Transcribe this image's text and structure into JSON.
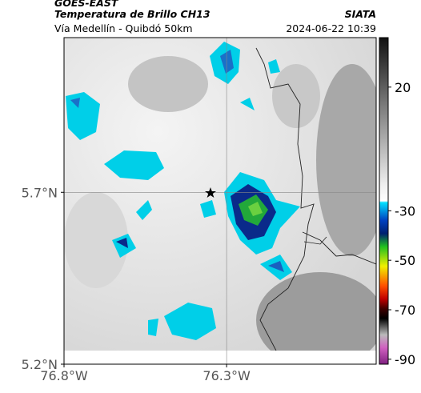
{
  "header": {
    "title": "GOES-EAST",
    "subtitle": "Temperatura de Brillo CH13",
    "source": "SIATA",
    "region": "Vía Medellín - Quibdó 50km",
    "timestamp": "2024-06-22 10:39"
  },
  "map": {
    "xlim": [
      -76.8,
      -75.84
    ],
    "ylim": [
      5.2,
      6.15
    ],
    "xticks": [
      {
        "value": -76.8,
        "label": "76.8°W"
      },
      {
        "value": -76.3,
        "label": "76.3°W"
      }
    ],
    "yticks": [
      {
        "value": 5.7,
        "label": "5.7°N"
      },
      {
        "value": 5.2,
        "label": "5.2°N"
      }
    ]
  },
  "colorbar": {
    "lim": [
      -92,
      40
    ],
    "ticks": [
      20,
      -30,
      -50,
      -70,
      -90
    ]
  }
}
